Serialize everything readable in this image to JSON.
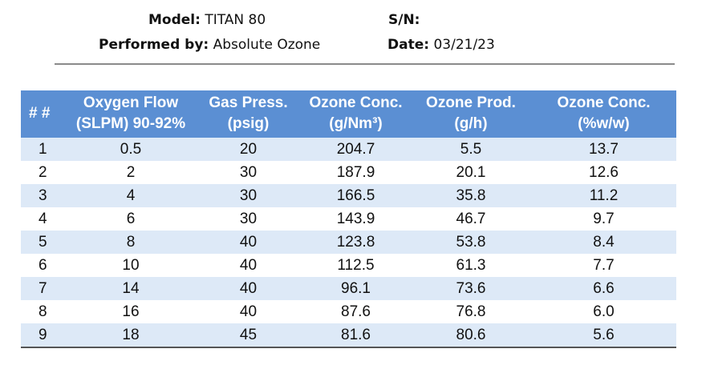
{
  "header": {
    "model_label": "Model:",
    "model_value": "TITAN 80",
    "performed_label": "Performed by:",
    "performed_value": "Absolute Ozone",
    "sn_label": "S/N:",
    "sn_value": "",
    "date_label": "Date:",
    "date_value": "03/21/23"
  },
  "table": {
    "columns": [
      {
        "line1": "# #",
        "line2": ""
      },
      {
        "line1": "Oxygen Flow",
        "line2": "(SLPM) 90-92%"
      },
      {
        "line1": "Gas Press.",
        "line2": "(psig)"
      },
      {
        "line1": "Ozone Conc.",
        "line2": "(g/Nm³)"
      },
      {
        "line1": "Ozone Prod.",
        "line2": "(g/h)"
      },
      {
        "line1": "Ozone Conc.",
        "line2": "(%w/w)"
      }
    ],
    "rows": [
      [
        "1",
        "0.5",
        "20",
        "204.7",
        "5.5",
        "13.7"
      ],
      [
        "2",
        "2",
        "30",
        "187.9",
        "20.1",
        "12.6"
      ],
      [
        "3",
        "4",
        "30",
        "166.5",
        "35.8",
        "11.2"
      ],
      [
        "4",
        "6",
        "30",
        "143.9",
        "46.7",
        "9.7"
      ],
      [
        "5",
        "8",
        "40",
        "123.8",
        "53.8",
        "8.4"
      ],
      [
        "6",
        "10",
        "40",
        "112.5",
        "61.3",
        "7.7"
      ],
      [
        "7",
        "14",
        "40",
        "96.1",
        "73.6",
        "6.6"
      ],
      [
        "8",
        "16",
        "40",
        "87.6",
        "76.8",
        "6.0"
      ],
      [
        "9",
        "18",
        "45",
        "81.6",
        "80.6",
        "5.6"
      ]
    ]
  },
  "colors": {
    "header_bg": "#5b8fd3",
    "stripe_bg": "#dde9f7"
  }
}
